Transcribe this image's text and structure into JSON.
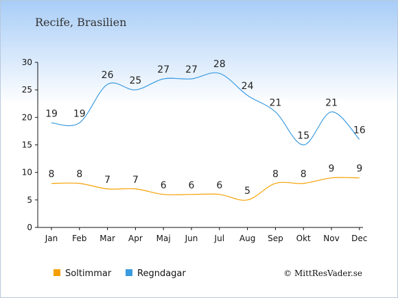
{
  "chart_data": {
    "type": "line",
    "title": "Recife, Brasilien",
    "categories": [
      "Jan",
      "Feb",
      "Mar",
      "Apr",
      "Maj",
      "Jun",
      "Jul",
      "Aug",
      "Sep",
      "Okt",
      "Nov",
      "Dec"
    ],
    "series": [
      {
        "name": "Soltimmar",
        "color": "#f5a000",
        "values": [
          8,
          8,
          7,
          7,
          6,
          6,
          6,
          5,
          8,
          8,
          9,
          9
        ]
      },
      {
        "name": "Regndagar",
        "color": "#3a9be0",
        "values": [
          19,
          19,
          26,
          25,
          27,
          27,
          28,
          24,
          21,
          15,
          21,
          16
        ]
      }
    ],
    "ylim": [
      0,
      30
    ],
    "yticks": [
      0,
      5,
      10,
      15,
      20,
      25,
      30
    ],
    "grid": false,
    "legend_position": "bottom-left"
  },
  "credit": "© MittResVader.se"
}
